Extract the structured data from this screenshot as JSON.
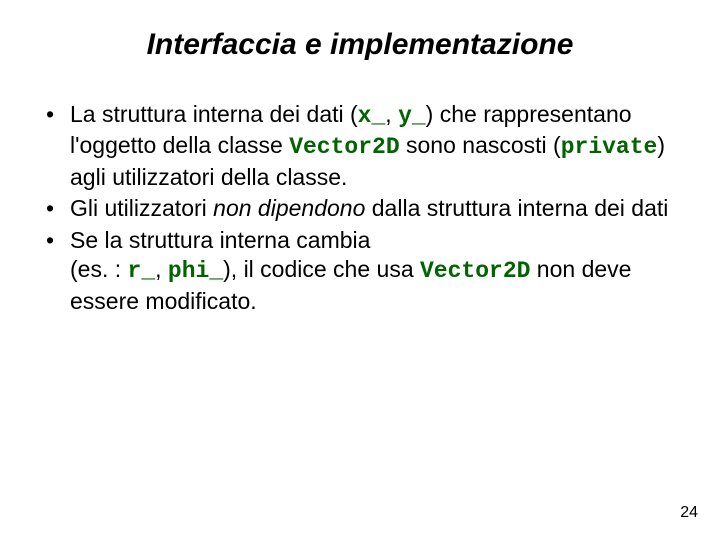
{
  "title": "Interfaccia e implementazione",
  "bullets": {
    "b1": {
      "pre": "La struttura interna dei dati  (",
      "code1": "x_",
      "mid1": ", ",
      "code2": "y_",
      "mid2": ") che rappresentano l'oggetto della classe ",
      "code3": "Vector2D",
      "mid3": " sono nascosti (",
      "code4": "private",
      "post": ") agli utilizzatori della classe."
    },
    "b2": {
      "pre": "Gli utilizzatori ",
      "italic": "non dipendono",
      "post": " dalla struttura interna dei dati"
    },
    "b3": {
      "pre": "Se la struttura interna cambia",
      "line2a": "(es. : ",
      "code1": "r_",
      "mid1": ", ",
      "code2": "phi_",
      "mid2": "),  il codice che usa ",
      "code3": "Vector2D",
      "post": " non deve essere modificato."
    }
  },
  "pageNumber": "24",
  "colors": {
    "code": "#006400",
    "text": "#000000",
    "background": "#ffffff"
  }
}
